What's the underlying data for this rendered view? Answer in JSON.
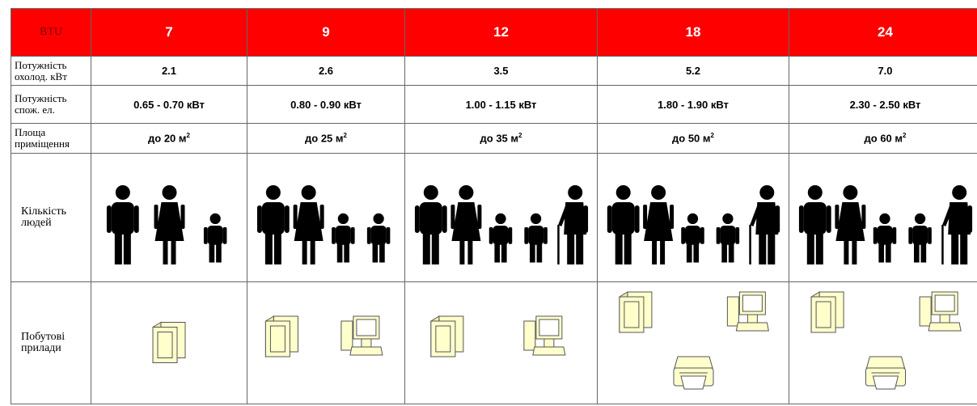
{
  "header": [
    "BTU",
    "7",
    "9",
    "12",
    "18",
    "24"
  ],
  "rows": [
    {
      "label": "Потужність охолод. кВт",
      "cells": [
        "2.1",
        "2.6",
        "3.5",
        "5.2",
        "7.0"
      ]
    },
    {
      "label": "Потужність спож. ел.",
      "cells": [
        "0.65 - 0.70 кВт",
        "0.80 - 0.90 кВт",
        "1.00 - 1.15 кВт",
        "1.80 - 1.90 кВт",
        "2.30 - 2.50 кВт"
      ]
    },
    {
      "label": "Площа приміщення",
      "cells": [
        {
          "text": "до 20 м",
          "sup": "2"
        },
        {
          "text": "до 25 м",
          "sup": "2"
        },
        {
          "text": "до 35 м",
          "sup": "2"
        },
        {
          "text": "до 50 м",
          "sup": "2"
        },
        {
          "text": "до 60 м",
          "sup": "2"
        }
      ]
    },
    {
      "label": "Кількість людей"
    },
    {
      "label": "Побутові прилади"
    }
  ]
}
